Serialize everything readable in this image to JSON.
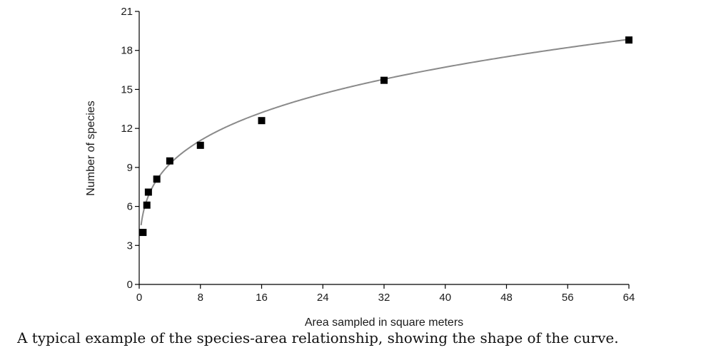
{
  "chart_data": {
    "type": "scatter",
    "title": "",
    "xlabel": "Area sampled in square meters",
    "ylabel": "Number of species",
    "xlim": [
      0,
      64
    ],
    "ylim": [
      0,
      21
    ],
    "x_ticks": [
      0,
      8,
      16,
      24,
      32,
      40,
      48,
      56,
      64
    ],
    "y_ticks": [
      0,
      3,
      6,
      9,
      12,
      15,
      18,
      21
    ],
    "grid": false,
    "series": [
      {
        "points": [
          {
            "x": 0.5,
            "y": 4.0
          },
          {
            "x": 1,
            "y": 6.1
          },
          {
            "x": 1.2,
            "y": 7.1
          },
          {
            "x": 2.3,
            "y": 8.1
          },
          {
            "x": 4,
            "y": 9.5
          },
          {
            "x": 8,
            "y": 10.7
          },
          {
            "x": 16,
            "y": 12.6
          },
          {
            "x": 32,
            "y": 15.7
          },
          {
            "x": 64,
            "y": 18.8
          }
        ]
      }
    ],
    "fitted_curve": {
      "type": "power",
      "c": 6.5,
      "z": 0.256
    },
    "colors": {
      "points": "#000000",
      "curve": "#8a8a8a",
      "axes": "#000000"
    }
  },
  "caption": "A typical example of the species-area relationship, showing the shape of the curve."
}
